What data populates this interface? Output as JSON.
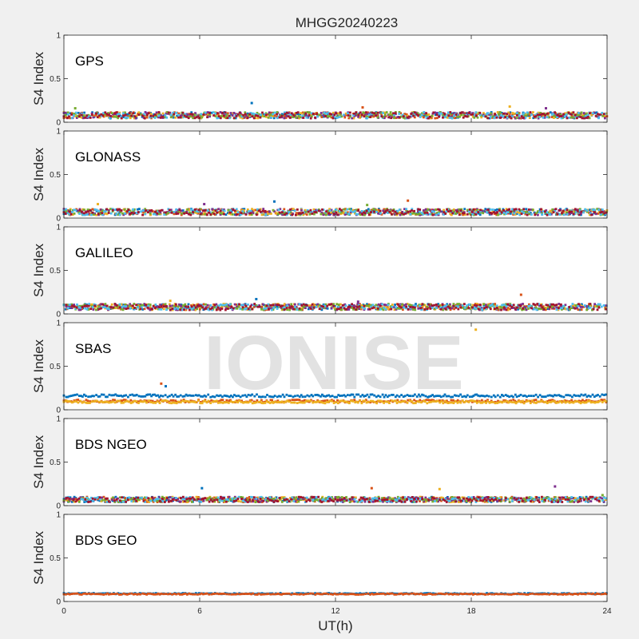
{
  "title": "MHGG20240223",
  "xlabel": "UT(h)",
  "watermark": "IONISE",
  "colors": {
    "figure_bg": "#f0f0f0",
    "axes_bg": "#ffffff",
    "axis": "#262626",
    "watermark": "#e2e2e2",
    "series": [
      "#0072BD",
      "#D95319",
      "#EDB120",
      "#7E2F8E",
      "#77AC30",
      "#4DBEEE",
      "#A2142F"
    ]
  },
  "chart_data": [
    {
      "type": "scatter",
      "label": "GPS",
      "ylabel": "S4 Index",
      "xlim": [
        0,
        24
      ],
      "ylim": [
        0,
        1
      ],
      "xticks": [
        0,
        6,
        12,
        18,
        24
      ],
      "yticks": [
        0,
        0.5,
        1
      ],
      "x_ticklabels_visible": false,
      "baseline": 0.08,
      "noise": 0.035,
      "spikes": [
        [
          8.3,
          0.22
        ],
        [
          13.2,
          0.17
        ],
        [
          19.7,
          0.18
        ],
        [
          21.3,
          0.16
        ],
        [
          0.5,
          0.16
        ]
      ],
      "series_count": 7
    },
    {
      "type": "scatter",
      "label": "GLONASS",
      "ylabel": "S4 Index",
      "xlim": [
        0,
        24
      ],
      "ylim": [
        0,
        1
      ],
      "xticks": [
        0,
        6,
        12,
        18,
        24
      ],
      "yticks": [
        0,
        0.5,
        1
      ],
      "x_ticklabels_visible": false,
      "baseline": 0.07,
      "noise": 0.035,
      "spikes": [
        [
          9.3,
          0.19
        ],
        [
          15.2,
          0.2
        ],
        [
          1.5,
          0.16
        ],
        [
          6.2,
          0.16
        ],
        [
          13.4,
          0.15
        ]
      ],
      "series_count": 7
    },
    {
      "type": "scatter",
      "label": "GALILEO",
      "ylabel": "S4 Index",
      "xlim": [
        0,
        24
      ],
      "ylim": [
        0,
        1
      ],
      "xticks": [
        0,
        6,
        12,
        18,
        24
      ],
      "yticks": [
        0,
        0.5,
        1
      ],
      "x_ticklabels_visible": false,
      "baseline": 0.08,
      "noise": 0.035,
      "spikes": [
        [
          8.5,
          0.17
        ],
        [
          20.2,
          0.22
        ],
        [
          4.7,
          0.15
        ],
        [
          13.0,
          0.14
        ]
      ],
      "series_count": 7
    },
    {
      "type": "scatter",
      "label": "SBAS",
      "ylabel": "S4 Index",
      "xlim": [
        0,
        24
      ],
      "ylim": [
        0,
        1
      ],
      "xticks": [
        0,
        6,
        12,
        18,
        24
      ],
      "yticks": [
        0,
        0.5,
        1
      ],
      "x_ticklabels_visible": false,
      "series_levels": [
        0.16,
        0.1,
        0.09
      ],
      "noise": 0.015,
      "spikes": [
        [
          4.5,
          0.27
        ],
        [
          4.3,
          0.3
        ],
        [
          18.2,
          0.92
        ]
      ],
      "series_count": 3
    },
    {
      "type": "scatter",
      "label": "BDS NGEO",
      "ylabel": "S4 Index",
      "xlim": [
        0,
        24
      ],
      "ylim": [
        0,
        1
      ],
      "xticks": [
        0,
        6,
        12,
        18,
        24
      ],
      "yticks": [
        0,
        0.5,
        1
      ],
      "x_ticklabels_visible": false,
      "baseline": 0.07,
      "noise": 0.03,
      "spikes": [
        [
          6.1,
          0.2
        ],
        [
          13.6,
          0.2
        ],
        [
          16.6,
          0.19
        ],
        [
          21.7,
          0.22
        ],
        [
          23.8,
          0.12
        ]
      ],
      "series_count": 7
    },
    {
      "type": "scatter",
      "label": "BDS GEO",
      "ylabel": "S4 Index",
      "xlim": [
        0,
        24
      ],
      "ylim": [
        0,
        1
      ],
      "xticks": [
        0,
        6,
        12,
        18,
        24
      ],
      "yticks": [
        0,
        0.5,
        1
      ],
      "x_ticklabels_visible": true,
      "series_levels": [
        0.09,
        0.085
      ],
      "noise": 0.006,
      "spikes": [],
      "series_count": 2
    }
  ]
}
